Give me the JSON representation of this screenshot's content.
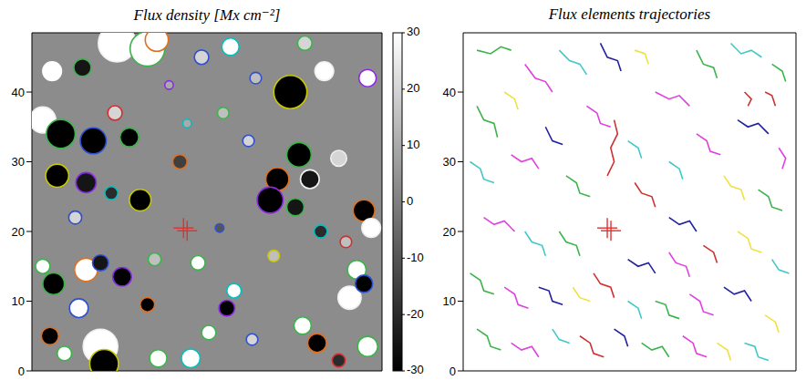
{
  "chart_data": [
    {
      "type": "scatter",
      "title": "Flux density [Mx cm⁻²]",
      "xlim": [
        0,
        48.5
      ],
      "ylim": [
        0,
        48.5
      ],
      "yticks": [
        0,
        10,
        20,
        30,
        40
      ],
      "tick_labels": "y",
      "colorbar": {
        "range": [
          -30,
          30
        ],
        "ticks": [
          -30,
          -20,
          -10,
          0,
          10,
          20,
          30
        ]
      },
      "crosshair": {
        "x": 21,
        "y": 20.5,
        "color": "#e03030"
      },
      "flux_elements": {
        "x": [
          11.8,
          16.0,
          17.3,
          7.0,
          2.8,
          23.5,
          27.5,
          37.8,
          35.8,
          40.5,
          46.5,
          1.5,
          4.0,
          8.5,
          3.5,
          7.5,
          13.5,
          11.5,
          15.0,
          11.0,
          6.0,
          20.5,
          26.5,
          37.0,
          38.5,
          34.0,
          33.0,
          36.5,
          42.5,
          46.0,
          47.0,
          43.5,
          40.0,
          26.0,
          21.5,
          30.0,
          1.5,
          7.5,
          9.5,
          3.0,
          6.5,
          12.5,
          17.0,
          2.5,
          9.5,
          10.0,
          4.5,
          17.5,
          22.0,
          24.5,
          27.0,
          28.0,
          16.0,
          23.0,
          44.0,
          45.0,
          46.0,
          39.5,
          37.5,
          33.5,
          30.5,
          46.5,
          42.5,
          19.0,
          31.0
        ],
        "y": [
          47.0,
          46.2,
          47.5,
          43.5,
          43.0,
          45.0,
          46.5,
          47.0,
          40.0,
          43.0,
          42.0,
          36.0,
          34.0,
          33.0,
          28.0,
          27.0,
          33.5,
          37.0,
          24.5,
          25.5,
          22.0,
          30.0,
          37.0,
          31.0,
          27.5,
          27.5,
          24.5,
          23.5,
          30.5,
          23.0,
          20.5,
          18.5,
          20.0,
          20.5,
          35.5,
          33.0,
          15.0,
          14.5,
          15.5,
          12.5,
          9.0,
          13.5,
          16.0,
          5.0,
          3.5,
          1.0,
          2.5,
          1.8,
          1.8,
          5.5,
          9.0,
          11.5,
          9.5,
          15.5,
          10.5,
          14.5,
          12.5,
          4.0,
          6.5,
          16.5,
          4.5,
          3.5,
          1.5,
          41.0,
          42.0
        ],
        "flux": [
          30,
          30,
          30,
          -25,
          30,
          20,
          30,
          20,
          -30,
          30,
          30,
          30,
          -30,
          -30,
          -30,
          -25,
          -30,
          20,
          -30,
          -20,
          20,
          -15,
          15,
          -30,
          -25,
          -30,
          -30,
          -25,
          20,
          -30,
          30,
          15,
          -20,
          -10,
          10,
          20,
          30,
          30,
          -25,
          -30,
          30,
          -30,
          15,
          -30,
          30,
          -30,
          30,
          30,
          30,
          30,
          -30,
          30,
          -30,
          30,
          30,
          30,
          -30,
          -30,
          30,
          15,
          20,
          30,
          -20,
          10,
          15
        ],
        "size": [
          2.6,
          2.4,
          1.6,
          1.2,
          1.3,
          1.0,
          1.2,
          1.0,
          2.3,
          1.3,
          1.2,
          1.8,
          2.0,
          1.8,
          1.6,
          1.4,
          1.3,
          1.0,
          1.5,
          0.9,
          0.9,
          1.0,
          0.8,
          1.7,
          1.3,
          1.6,
          1.8,
          1.2,
          1.1,
          1.5,
          1.3,
          0.8,
          0.9,
          0.6,
          0.6,
          0.8,
          1.0,
          1.6,
          1.1,
          1.5,
          1.3,
          1.3,
          0.9,
          1.2,
          2.4,
          2.0,
          1.0,
          1.2,
          1.3,
          1.0,
          1.1,
          1.0,
          1.0,
          1.0,
          1.6,
          1.3,
          1.2,
          1.3,
          1.2,
          0.8,
          0.8,
          1.4,
          0.9,
          0.6,
          0.8
        ],
        "colors": [
          "#f0f0f0",
          "#3cb44b",
          "#e07020",
          "#3cb44b",
          "#ffffff",
          "#3050d0",
          "#00c0c0",
          "#3cb44b",
          "#c8c800",
          "#f0f0f0",
          "#8a2be2",
          "#f0f0f0",
          "#3cb44b",
          "#3050d0",
          "#c8c800",
          "#8a2be2",
          "#3cb44b",
          "#d03030",
          "#c8c800",
          "#00c0c0",
          "#3050d0",
          "#e07020",
          "#3cb44b",
          "#3cb44b",
          "#f0f0f0",
          "#e07020",
          "#8a2be2",
          "#3cb44b",
          "#f0f0f0",
          "#e07020",
          "#f0f0f0",
          "#d03030",
          "#00c0c0",
          "#3050d0",
          "#00c0c0",
          "#3050d0",
          "#3cb44b",
          "#e07020",
          "#3050d0",
          "#3cb44b",
          "#3050d0",
          "#8a2be2",
          "#3cb44b",
          "#e07020",
          "#f0f0f0",
          "#c8c800",
          "#3cb44b",
          "#3cb44b",
          "#00c0c0",
          "#3cb44b",
          "#8a2be2",
          "#00c0c0",
          "#e07020",
          "#3cb44b",
          "#f0f0f0",
          "#3cb44b",
          "#3050d0",
          "#e07020",
          "#3cb44b",
          "#c8c800",
          "#3050d0",
          "#3cb44b",
          "#d03030",
          "#8a2be2",
          "#3050d0"
        ]
      }
    },
    {
      "type": "line",
      "title": "Flux elements trajectories",
      "xlim": [
        0,
        48.5
      ],
      "ylim": [
        0,
        48.5
      ],
      "yticks": [
        0,
        10,
        20,
        30,
        40
      ],
      "tick_labels": "y",
      "crosshair": {
        "x": 21,
        "y": 20.5,
        "color": "#e03030"
      },
      "series": [
        {
          "color": "#3cb44b",
          "x": [
            2,
            4,
            5.5,
            7
          ],
          "y": [
            46,
            45.5,
            46.5,
            46
          ]
        },
        {
          "color": "#e040e0",
          "x": [
            9,
            10.5,
            12,
            13
          ],
          "y": [
            44,
            42,
            41.5,
            40
          ]
        },
        {
          "color": "#40c8c8",
          "x": [
            14,
            15.5,
            17,
            18
          ],
          "y": [
            46,
            44.5,
            44,
            42.5
          ]
        },
        {
          "color": "#2020a0",
          "x": [
            20,
            21,
            22.5,
            23
          ],
          "y": [
            47,
            45,
            44.5,
            43
          ]
        },
        {
          "color": "#f0e040",
          "x": [
            25,
            26.5,
            27
          ],
          "y": [
            46,
            45.5,
            44
          ]
        },
        {
          "color": "#d03030",
          "x": [
            22,
            22.5,
            21.5,
            22,
            21
          ],
          "y": [
            36,
            34,
            32,
            30,
            28
          ]
        },
        {
          "color": "#e040e0",
          "x": [
            28,
            30,
            31.5,
            33
          ],
          "y": [
            40,
            39,
            39.5,
            38
          ]
        },
        {
          "color": "#3cb44b",
          "x": [
            34,
            35,
            36.5,
            37
          ],
          "y": [
            46,
            44,
            43.5,
            42
          ]
        },
        {
          "color": "#40c8c8",
          "x": [
            39,
            40.5,
            42,
            43.5
          ],
          "y": [
            47,
            45.5,
            46,
            45
          ]
        },
        {
          "color": "#d03030",
          "x": [
            44,
            45,
            45.5
          ],
          "y": [
            40,
            39.5,
            38
          ]
        },
        {
          "color": "#2020a0",
          "x": [
            40,
            41.5,
            43,
            44.5
          ],
          "y": [
            36,
            35,
            35.5,
            34
          ]
        },
        {
          "color": "#e040e0",
          "x": [
            46,
            47,
            46.5
          ],
          "y": [
            32,
            30.5,
            29
          ]
        },
        {
          "color": "#3cb44b",
          "x": [
            2,
            3,
            4.5,
            5
          ],
          "y": [
            38,
            36,
            35.5,
            33.5
          ]
        },
        {
          "color": "#f0e040",
          "x": [
            6,
            7.5,
            8
          ],
          "y": [
            40,
            39,
            37.5
          ]
        },
        {
          "color": "#40c8c8",
          "x": [
            1,
            2.5,
            3,
            4.5
          ],
          "y": [
            30,
            29,
            27.5,
            27
          ]
        },
        {
          "color": "#e040e0",
          "x": [
            7,
            8.5,
            10,
            11
          ],
          "y": [
            31,
            30,
            30.5,
            29
          ]
        },
        {
          "color": "#2020a0",
          "x": [
            12,
            13,
            14.5
          ],
          "y": [
            35,
            33,
            32.5
          ]
        },
        {
          "color": "#3cb44b",
          "x": [
            15,
            16.5,
            17,
            18.5
          ],
          "y": [
            28,
            27,
            25.5,
            25
          ]
        },
        {
          "color": "#d03030",
          "x": [
            25,
            26,
            27.5,
            28
          ],
          "y": [
            27,
            25.5,
            25,
            23.5
          ]
        },
        {
          "color": "#40c8c8",
          "x": [
            30,
            31.5,
            32
          ],
          "y": [
            30,
            29,
            27.5
          ]
        },
        {
          "color": "#e040e0",
          "x": [
            34,
            35.5,
            36,
            37.5
          ],
          "y": [
            34,
            33,
            31.5,
            31
          ]
        },
        {
          "color": "#f0e040",
          "x": [
            38,
            39,
            40.5,
            41
          ],
          "y": [
            28,
            26.5,
            26,
            24.5
          ]
        },
        {
          "color": "#3cb44b",
          "x": [
            43,
            44.5,
            45,
            46.5
          ],
          "y": [
            26,
            25,
            23.5,
            23
          ]
        },
        {
          "color": "#2020a0",
          "x": [
            30,
            31.5,
            33,
            34
          ],
          "y": [
            22,
            21,
            21.5,
            20
          ]
        },
        {
          "color": "#e040e0",
          "x": [
            3,
            4.5,
            6,
            7.5
          ],
          "y": [
            22,
            21,
            21.5,
            20
          ]
        },
        {
          "color": "#40c8c8",
          "x": [
            9,
            10,
            11.5,
            12
          ],
          "y": [
            20,
            18.5,
            18,
            16.5
          ]
        },
        {
          "color": "#3cb44b",
          "x": [
            14,
            15,
            16.5,
            17
          ],
          "y": [
            20,
            18.5,
            18,
            16.5
          ]
        },
        {
          "color": "#2020a0",
          "x": [
            24,
            25.5,
            27,
            28
          ],
          "y": [
            16,
            15,
            15.5,
            14
          ]
        },
        {
          "color": "#e040e0",
          "x": [
            30,
            31,
            32.5,
            33
          ],
          "y": [
            17,
            15.5,
            15,
            13.5
          ]
        },
        {
          "color": "#d03030",
          "x": [
            35,
            36.5,
            37
          ],
          "y": [
            18,
            17,
            15.5
          ]
        },
        {
          "color": "#f0e040",
          "x": [
            40,
            41.5,
            42,
            43.5
          ],
          "y": [
            20,
            19,
            17.5,
            17
          ]
        },
        {
          "color": "#40c8c8",
          "x": [
            45,
            46,
            47.5
          ],
          "y": [
            16,
            14.5,
            14
          ]
        },
        {
          "color": "#3cb44b",
          "x": [
            1,
            2.5,
            3,
            4.5
          ],
          "y": [
            14,
            13,
            11.5,
            11
          ]
        },
        {
          "color": "#e040e0",
          "x": [
            6,
            7.5,
            8,
            9.5
          ],
          "y": [
            12,
            11,
            9.5,
            9
          ]
        },
        {
          "color": "#2020a0",
          "x": [
            11,
            12.5,
            13,
            14.5
          ],
          "y": [
            12,
            11.5,
            10,
            9.5
          ]
        },
        {
          "color": "#f0e040",
          "x": [
            16,
            17,
            18.5
          ],
          "y": [
            12,
            10.5,
            10
          ]
        },
        {
          "color": "#d03030",
          "x": [
            19,
            20,
            21.5,
            22
          ],
          "y": [
            14,
            12.5,
            12,
            10.5
          ]
        },
        {
          "color": "#40c8c8",
          "x": [
            24,
            25.5,
            26
          ],
          "y": [
            10,
            9,
            7.5
          ]
        },
        {
          "color": "#3cb44b",
          "x": [
            28,
            29.5,
            30,
            31.5
          ],
          "y": [
            10,
            9.5,
            8,
            7.5
          ]
        },
        {
          "color": "#e040e0",
          "x": [
            33,
            34.5,
            35,
            36.5
          ],
          "y": [
            11,
            10,
            8.5,
            8
          ]
        },
        {
          "color": "#2020a0",
          "x": [
            38,
            39.5,
            41,
            42
          ],
          "y": [
            12,
            11,
            11.5,
            10
          ]
        },
        {
          "color": "#f0e040",
          "x": [
            44,
            45.5,
            46
          ],
          "y": [
            8,
            7,
            5.5
          ]
        },
        {
          "color": "#3cb44b",
          "x": [
            2,
            3.5,
            4,
            5.5
          ],
          "y": [
            6,
            5,
            3.5,
            3
          ]
        },
        {
          "color": "#e040e0",
          "x": [
            7,
            8.5,
            10,
            11
          ],
          "y": [
            4,
            3,
            3.5,
            2
          ]
        },
        {
          "color": "#40c8c8",
          "x": [
            13,
            14,
            15.5
          ],
          "y": [
            6,
            4.5,
            4
          ]
        },
        {
          "color": "#d03030",
          "x": [
            17,
            18.5,
            19,
            20.5
          ],
          "y": [
            5,
            4,
            2.5,
            2
          ]
        },
        {
          "color": "#2020a0",
          "x": [
            22,
            23.5,
            24
          ],
          "y": [
            6,
            5,
            3.5
          ]
        },
        {
          "color": "#3cb44b",
          "x": [
            26,
            27.5,
            29,
            30
          ],
          "y": [
            4,
            3,
            3.5,
            2
          ]
        },
        {
          "color": "#e040e0",
          "x": [
            32,
            33.5,
            34,
            35.5
          ],
          "y": [
            5,
            4,
            2.5,
            2
          ]
        },
        {
          "color": "#f0e040",
          "x": [
            37,
            38.5,
            39
          ],
          "y": [
            4,
            3,
            1.5
          ]
        },
        {
          "color": "#40c8c8",
          "x": [
            41,
            42.5,
            43,
            44.5
          ],
          "y": [
            4,
            3.5,
            2,
            1.5
          ]
        },
        {
          "color": "#3cb44b",
          "x": [
            45,
            46.5,
            47
          ],
          "y": [
            44,
            43,
            41.5
          ]
        },
        {
          "color": "#e040e0",
          "x": [
            18,
            19.5,
            20,
            21.5
          ],
          "y": [
            38,
            37,
            35.5,
            35
          ]
        },
        {
          "color": "#40c8c8",
          "x": [
            24,
            25.5,
            26
          ],
          "y": [
            33,
            32,
            30.5
          ]
        },
        {
          "color": "#d03030",
          "x": [
            41,
            42,
            41.5
          ],
          "y": [
            40,
            39,
            38
          ]
        }
      ]
    }
  ]
}
